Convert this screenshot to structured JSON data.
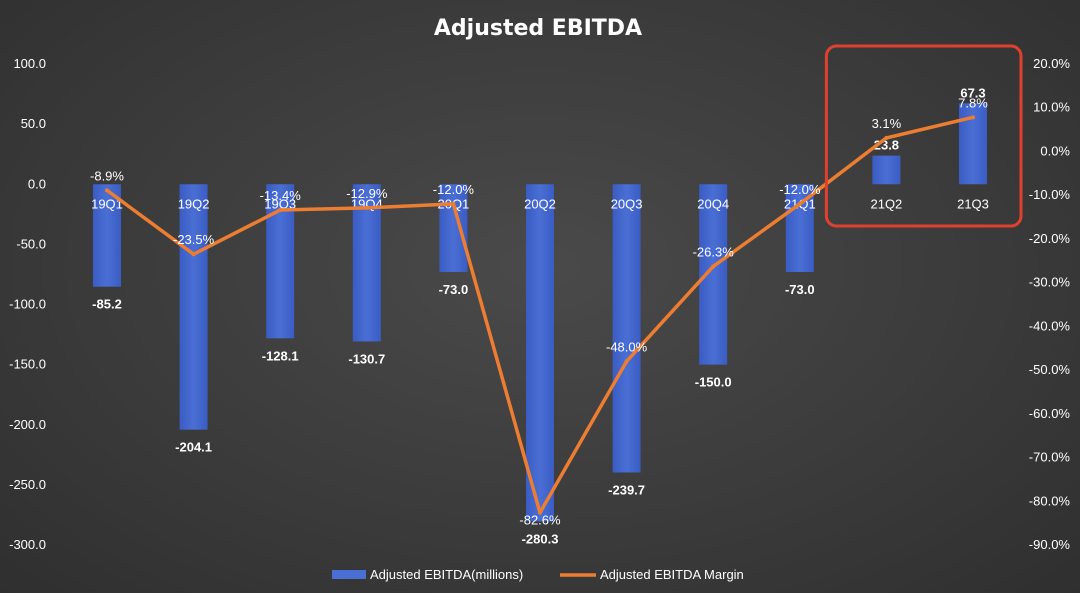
{
  "chart_data": {
    "type": "bar",
    "title": "Adjusted EBITDA",
    "categories": [
      "19Q1",
      "19Q2",
      "19Q3",
      "19Q4",
      "20Q1",
      "20Q2",
      "20Q3",
      "20Q4",
      "21Q1",
      "21Q2",
      "21Q3"
    ],
    "series": [
      {
        "name": "Adjusted EBITDA(millions)",
        "type": "bar",
        "axis": "left",
        "values": [
          -85.2,
          -204.1,
          -128.1,
          -130.7,
          -73.0,
          -280.3,
          -239.7,
          -150.0,
          -73.0,
          23.8,
          67.3
        ],
        "labels": [
          "-85.2",
          "-204.1",
          "-128.1",
          "-130.7",
          "-73.0",
          "-280.3",
          "-239.7",
          "-150.0",
          "-73.0",
          "23.8",
          "67.3"
        ]
      },
      {
        "name": "Adjusted EBITDA Margin",
        "type": "line",
        "axis": "right",
        "values": [
          -8.9,
          -23.5,
          -13.4,
          -12.9,
          -12.0,
          -82.6,
          -48.0,
          -26.3,
          -12.0,
          3.1,
          7.8
        ],
        "labels": [
          "-8.9%",
          "-23.5%",
          "-13.4%",
          "-12.9%",
          "-12.0%",
          "-82.6%",
          "-48.0%",
          "-26.3%",
          "-12.0%",
          "3.1%",
          "7.8%"
        ]
      }
    ],
    "y_left": {
      "ylim": [
        -300,
        100
      ],
      "ticks": [
        100,
        50,
        0,
        -50,
        -100,
        -150,
        -200,
        -250,
        -300
      ],
      "tick_labels": [
        "100.0",
        "50.0",
        "0.0",
        "-50.0",
        "-100.0",
        "-150.0",
        "-200.0",
        "-250.0",
        "-300.0"
      ]
    },
    "y_right": {
      "ylim": [
        -90,
        20
      ],
      "ticks": [
        20,
        10,
        0,
        -10,
        -20,
        -30,
        -40,
        -50,
        -60,
        -70,
        -80,
        -90
      ],
      "tick_labels": [
        "20.0%",
        "10.0%",
        "0.0%",
        "-10.0%",
        "-20.0%",
        "-30.0%",
        "-40.0%",
        "-50.0%",
        "-60.0%",
        "-70.0%",
        "-80.0%",
        "-90.0%"
      ]
    },
    "grid": false,
    "legend": "bottom",
    "highlight": {
      "categories": [
        "21Q2",
        "21Q3"
      ]
    },
    "colors": {
      "bar": "#4a6fd4",
      "line": "#ed7d31",
      "highlight_box": "#e0412f"
    }
  }
}
